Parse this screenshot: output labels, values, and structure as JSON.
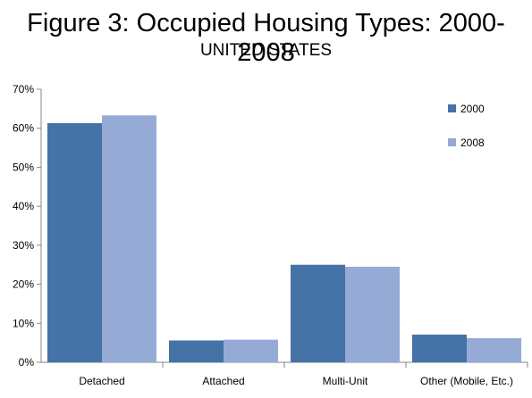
{
  "title": "Figure 3: Occupied Housing Types: 2000-2008",
  "subtitle": "UNITED STATES",
  "chart_data": {
    "type": "bar",
    "categories": [
      "Detached",
      "Attached",
      "Multi-Unit",
      "Other (Mobile, Etc.)"
    ],
    "series": [
      {
        "name": "2000",
        "color": "#4572A7",
        "values": [
          61.3,
          5.6,
          25.0,
          7.1
        ]
      },
      {
        "name": "2008",
        "color": "#95ABD6",
        "values": [
          63.3,
          5.8,
          24.5,
          6.2
        ]
      }
    ],
    "ylim": [
      0,
      70
    ],
    "yticks": [
      0,
      10,
      20,
      30,
      40,
      50,
      60,
      70
    ],
    "ytick_labels": [
      "0%",
      "10%",
      "20%",
      "30%",
      "40%",
      "50%",
      "60%",
      "70%"
    ],
    "xlabel": "",
    "ylabel": "",
    "grid": false,
    "legend_position": "top-right"
  }
}
